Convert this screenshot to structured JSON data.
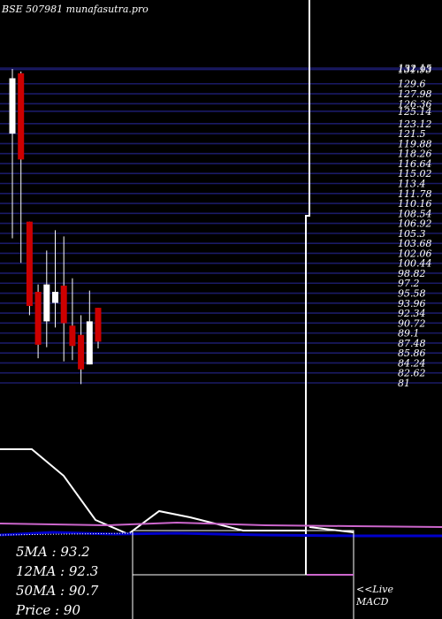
{
  "chart_data": {
    "type": "candlestick",
    "title": "BSE 507981 munafasutra.pro",
    "y_tick_labels": [
      "132.15",
      "131.93",
      "129.6",
      "127.98",
      "126.36",
      "125.14",
      "123.12",
      "121.5",
      "119.88",
      "118.26",
      "116.64",
      "115.02",
      "113.4",
      "111.78",
      "110.16",
      "108.54",
      "106.92",
      "105.3",
      "103.68",
      "102.06",
      "100.44",
      "98.82",
      "97.2",
      "95.58",
      "93.96",
      "92.34",
      "90.72",
      "89.1",
      "87.48",
      "85.86",
      "84.24",
      "82.62",
      "81"
    ],
    "y_tick_values": [
      132.15,
      131.93,
      129.6,
      127.98,
      126.36,
      125.14,
      123.12,
      121.5,
      119.88,
      118.26,
      116.64,
      115.02,
      113.4,
      111.78,
      110.16,
      108.54,
      106.92,
      105.3,
      103.68,
      102.06,
      100.44,
      98.82,
      97.2,
      95.58,
      93.96,
      92.34,
      90.72,
      89.1,
      87.48,
      85.86,
      84.24,
      82.62,
      81
    ],
    "ylim": [
      81,
      132.15
    ],
    "grid": true,
    "candles": [
      {
        "open": 121.5,
        "close": 130.5,
        "high": 132.0,
        "low": 104.5,
        "color": "white"
      },
      {
        "open": 131.3,
        "close": 117.3,
        "high": 131.6,
        "low": 100.5,
        "color": "red"
      },
      {
        "open": 107.2,
        "close": 93.5,
        "high": 107.2,
        "low": 92.0,
        "color": "red"
      },
      {
        "open": 95.8,
        "close": 87.2,
        "high": 97.0,
        "low": 85.0,
        "color": "red"
      },
      {
        "open": 91.0,
        "close": 97.0,
        "high": 102.5,
        "low": 86.8,
        "color": "white"
      },
      {
        "open": 95.8,
        "close": 94.0,
        "high": 105.8,
        "low": 90.0,
        "color": "white"
      },
      {
        "open": 96.8,
        "close": 90.7,
        "high": 104.8,
        "low": 84.5,
        "color": "red"
      },
      {
        "open": 90.3,
        "close": 87.0,
        "high": 98.0,
        "low": 84.7,
        "color": "red"
      },
      {
        "open": 88.8,
        "close": 83.2,
        "high": 92.0,
        "low": 80.8,
        "color": "red"
      },
      {
        "open": 84.0,
        "close": 91.0,
        "high": 96.0,
        "low": 84.0,
        "color": "white"
      },
      {
        "open": 93.2,
        "close": 87.7,
        "high": 93.2,
        "low": 86.6,
        "color": "red"
      }
    ],
    "indicators": {
      "MA5": 93.2,
      "MA12": 92.3,
      "MA50": 90.7,
      "Price": 90
    },
    "macd_label": "<<Live\nMACD"
  },
  "labels": {
    "ma5": "5MA : 93.2",
    "ma12": "12MA : 92.3",
    "ma50": "50MA : 90.7",
    "price": "Price   : 90",
    "live": "<<Live",
    "macd": "MACD"
  },
  "colors": {
    "grid": "#1a1a66",
    "bull": "#ffffff",
    "bear": "#cc0000",
    "ma_line": "#ffffff",
    "macd_pink": "#cc66cc",
    "macd_blue": "#0000cc"
  }
}
